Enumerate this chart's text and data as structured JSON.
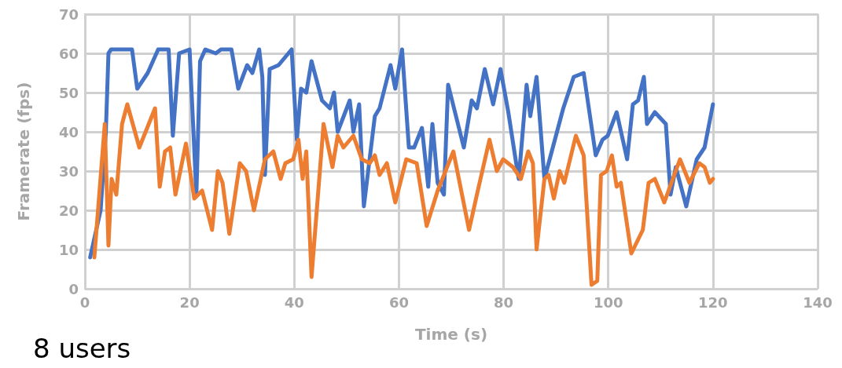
{
  "chart_data": {
    "type": "line",
    "xlabel": "Time (s)",
    "ylabel": "Framerate (fps)",
    "annotations": [
      "8 users"
    ],
    "xlim": [
      0,
      140
    ],
    "xticks": [
      0,
      20,
      40,
      60,
      80,
      100,
      120,
      140
    ],
    "ylim": [
      0,
      70
    ],
    "yticks": [
      0,
      10,
      20,
      30,
      40,
      50,
      60,
      70
    ],
    "grid": true,
    "marker": "none",
    "line_style": "solid",
    "series": [
      {
        "color": "#4472c4",
        "x": [
          1,
          3,
          4,
          4.5,
          5,
          9,
          10,
          12,
          14,
          16,
          16.8,
          18,
          20,
          21.3,
          22,
          23,
          25,
          26,
          28,
          29.3,
          31,
          32,
          33.3,
          33.9,
          34.4,
          35.3,
          37,
          39.5,
          40.5,
          41.3,
          42.3,
          43.3,
          45.3,
          46.8,
          47.6,
          48.3,
          50.6,
          51.3,
          52.4,
          53.3,
          55.4,
          56.3,
          58.4,
          59.3,
          60.6,
          61.9,
          62.9,
          64.4,
          65.6,
          66.4,
          67.4,
          68.6,
          69.4,
          72.4,
          73.9,
          74.9,
          76.4,
          78,
          79.4,
          80.9,
          82.4,
          82.9,
          84.4,
          85.1,
          86.3,
          87.8,
          91.4,
          93.4,
          95.3,
          97.6,
          98.9,
          99.9,
          101.6,
          103.6,
          104.7,
          105.7,
          106.8,
          107.4,
          108.9,
          111,
          111.9,
          112.9,
          114.9,
          116.9,
          118.4,
          120
        ],
        "values": [
          8,
          20,
          40,
          60,
          61,
          61,
          51,
          55,
          61,
          61,
          39,
          60,
          61,
          24,
          58,
          61,
          60,
          61,
          61,
          51,
          57,
          55,
          61,
          54,
          29,
          56,
          57,
          61,
          38,
          51,
          50,
          58,
          48,
          46,
          50,
          40,
          48,
          40,
          47,
          21,
          44,
          46,
          57,
          51,
          61,
          36,
          36,
          41,
          26,
          42,
          27,
          24,
          52,
          36,
          48,
          46,
          56,
          47,
          56,
          45,
          32,
          28,
          52,
          44,
          54,
          28,
          46,
          54,
          55,
          34,
          38,
          39,
          45,
          33,
          47,
          48,
          54,
          42,
          45,
          42,
          24,
          31,
          21,
          33,
          36,
          47
        ]
      },
      {
        "color": "#ed7d31",
        "x": [
          1.8,
          3.8,
          4.5,
          5.1,
          6,
          7.1,
          8.1,
          10.4,
          13.4,
          14.3,
          15.3,
          16.3,
          17.3,
          19.3,
          20.9,
          22.4,
          24.3,
          25.4,
          26.3,
          27.6,
          29.6,
          30.8,
          32.3,
          34.4,
          36,
          37.4,
          38.3,
          39.8,
          40.8,
          41.6,
          42.3,
          43.3,
          45.6,
          47.3,
          48.3,
          49.4,
          51.3,
          52.9,
          54.4,
          55.4,
          56.3,
          57.7,
          59.3,
          61.4,
          63.4,
          65.3,
          67.4,
          70.4,
          73.4,
          74.9,
          77.3,
          78.7,
          79.9,
          81.8,
          83.3,
          84.7,
          85.6,
          86.3,
          87.8,
          88.6,
          89.6,
          90.7,
          91.6,
          93.8,
          95.3,
          96.8,
          97.9,
          98.6,
          99.7,
          100.7,
          101.6,
          102.4,
          104.4,
          106.6,
          107.7,
          108.9,
          110.7,
          113.7,
          115.5,
          117.4,
          118.4,
          119.4,
          120
        ],
        "values": [
          8,
          42,
          11,
          28,
          24,
          42,
          47,
          36,
          46,
          26,
          35,
          36,
          24,
          37,
          23,
          25,
          15,
          30,
          27,
          14,
          32,
          30,
          20,
          33,
          35,
          28,
          32,
          33,
          38,
          28,
          35,
          3,
          42,
          31,
          39,
          36,
          39,
          33,
          32,
          34,
          29,
          32,
          22,
          33,
          32,
          16,
          25,
          35,
          15,
          24,
          38,
          30,
          33,
          31,
          28,
          35,
          32,
          10,
          28,
          29,
          23,
          30,
          27,
          39,
          34,
          1,
          2,
          29,
          30,
          34,
          26,
          27,
          9,
          15,
          27,
          28,
          22,
          33,
          27,
          32,
          31,
          27,
          28
        ]
      }
    ]
  }
}
